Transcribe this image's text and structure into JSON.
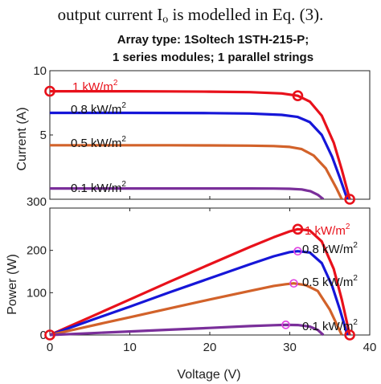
{
  "page_text": {
    "before": "output current I",
    "subscript": "o",
    "after": " is modelled in Eq. (3)."
  },
  "colors": {
    "1 kW/m2": "#e8111b",
    "0.8 kW/m2": "#1616d8",
    "0.5 kW/m2": "#d2622a",
    "0.1 kW/m2": "#7a2f9a",
    "marker_mpp_top": "#e8111b",
    "marker_mpp_other": "#e040e0"
  },
  "chart_data": [
    {
      "type": "line",
      "title_lines": [
        "Array type: 1Soltech 1STH-215-P;",
        "1 series modules; 1 parallel strings"
      ],
      "xlabel": "",
      "ylabel": "Current (A)",
      "xlim": [
        0,
        40
      ],
      "ylim": [
        0,
        10
      ],
      "yticks": [
        "0",
        "5",
        "10"
      ],
      "series": [
        {
          "name": "1 kW/m2",
          "label": "1 kW/m",
          "sup": "2",
          "x": [
            0,
            5,
            10,
            15,
            20,
            25,
            29,
            31,
            32.5,
            34,
            35.5,
            36.5,
            37.5
          ],
          "y": [
            8.4,
            8.4,
            8.4,
            8.39,
            8.37,
            8.33,
            8.23,
            8.05,
            7.6,
            6.5,
            4.4,
            2.3,
            0
          ]
        },
        {
          "name": "0.8 kW/m2",
          "label": "0.8 kW/m",
          "sup": "2",
          "x": [
            0,
            5,
            10,
            15,
            20,
            25,
            29,
            31,
            32.5,
            34,
            35.3,
            36.3,
            37.2
          ],
          "y": [
            6.72,
            6.72,
            6.72,
            6.71,
            6.7,
            6.67,
            6.56,
            6.4,
            6.0,
            5.0,
            3.3,
            1.6,
            0
          ]
        },
        {
          "name": "0.5 kW/m2",
          "label": "0.5 kW/m",
          "sup": "2",
          "x": [
            0,
            5,
            10,
            15,
            20,
            25,
            28,
            30,
            31.5,
            33,
            34.5,
            35.8,
            36.5
          ],
          "y": [
            4.2,
            4.2,
            4.2,
            4.2,
            4.19,
            4.17,
            4.14,
            4.07,
            3.9,
            3.4,
            2.4,
            0.9,
            0
          ]
        },
        {
          "name": "0.1 kW/m2",
          "label": "0.1 kW/m",
          "sup": "2",
          "x": [
            0,
            5,
            10,
            15,
            20,
            25,
            28,
            30,
            31.5,
            32.6,
            33.5,
            34.2
          ],
          "y": [
            0.84,
            0.84,
            0.84,
            0.84,
            0.84,
            0.84,
            0.83,
            0.81,
            0.76,
            0.62,
            0.35,
            0
          ]
        }
      ],
      "markers": [
        {
          "x": 0,
          "y": 8.4,
          "color": "#e8111b"
        },
        {
          "x": 31,
          "y": 8.05,
          "color": "#e8111b"
        },
        {
          "x": 37.5,
          "y": 0,
          "color": "#e8111b"
        }
      ],
      "overlap_tick_text": "300"
    },
    {
      "type": "line",
      "xlabel": "Voltage (V)",
      "ylabel": "Power (W)",
      "xlim": [
        0,
        40
      ],
      "ylim": [
        0,
        300
      ],
      "xticks": [
        "0",
        "10",
        "20",
        "30",
        "40"
      ],
      "yticks": [
        "0",
        "100",
        "200"
      ],
      "series": [
        {
          "name": "1 kW/m2",
          "label": "1 kW/m",
          "sup": "2",
          "x": [
            0,
            5,
            10,
            15,
            20,
            25,
            28,
            30,
            31,
            32.5,
            34,
            35.5,
            36.5,
            37.5
          ],
          "y": [
            0,
            42,
            84,
            126,
            167,
            208,
            231,
            245,
            250,
            247,
            221,
            156,
            84,
            0
          ]
        },
        {
          "name": "0.8 kW/m2",
          "label": "0.8 kW/m",
          "sup": "2",
          "x": [
            0,
            5,
            10,
            15,
            20,
            25,
            28,
            30,
            31,
            32.5,
            34,
            35.3,
            36.3,
            37.2
          ],
          "y": [
            0,
            34,
            67,
            101,
            134,
            167,
            186,
            196,
            198,
            195,
            170,
            116,
            58,
            0
          ]
        },
        {
          "name": "0.5 kW/m2",
          "label": "0.5 kW/m",
          "sup": "2",
          "x": [
            0,
            5,
            10,
            15,
            20,
            25,
            28,
            29.5,
            30.5,
            32,
            33.5,
            35,
            36.5
          ],
          "y": [
            0,
            21,
            42,
            63,
            84,
            104,
            116,
            120,
            122,
            118,
            104,
            60,
            0
          ]
        },
        {
          "name": "0.1 kW/m2",
          "label": "0.1 kW/m",
          "sup": "2",
          "x": [
            0,
            5,
            10,
            15,
            20,
            25,
            28,
            29.5,
            31,
            32.5,
            33.5,
            34.2
          ],
          "y": [
            0,
            4.2,
            8.4,
            12.6,
            16.8,
            21,
            23.2,
            24,
            23.5,
            20,
            12,
            0
          ]
        }
      ],
      "markers": [
        {
          "x": 0,
          "y": 0,
          "color": "#e8111b"
        },
        {
          "x": 31,
          "y": 250,
          "color": "#e8111b"
        },
        {
          "x": 37.5,
          "y": 0,
          "color": "#e8111b"
        },
        {
          "x": 31,
          "y": 198,
          "color": "#e040e0"
        },
        {
          "x": 30.5,
          "y": 122,
          "color": "#e040e0"
        },
        {
          "x": 29.5,
          "y": 24,
          "color": "#e040e0"
        }
      ]
    }
  ]
}
